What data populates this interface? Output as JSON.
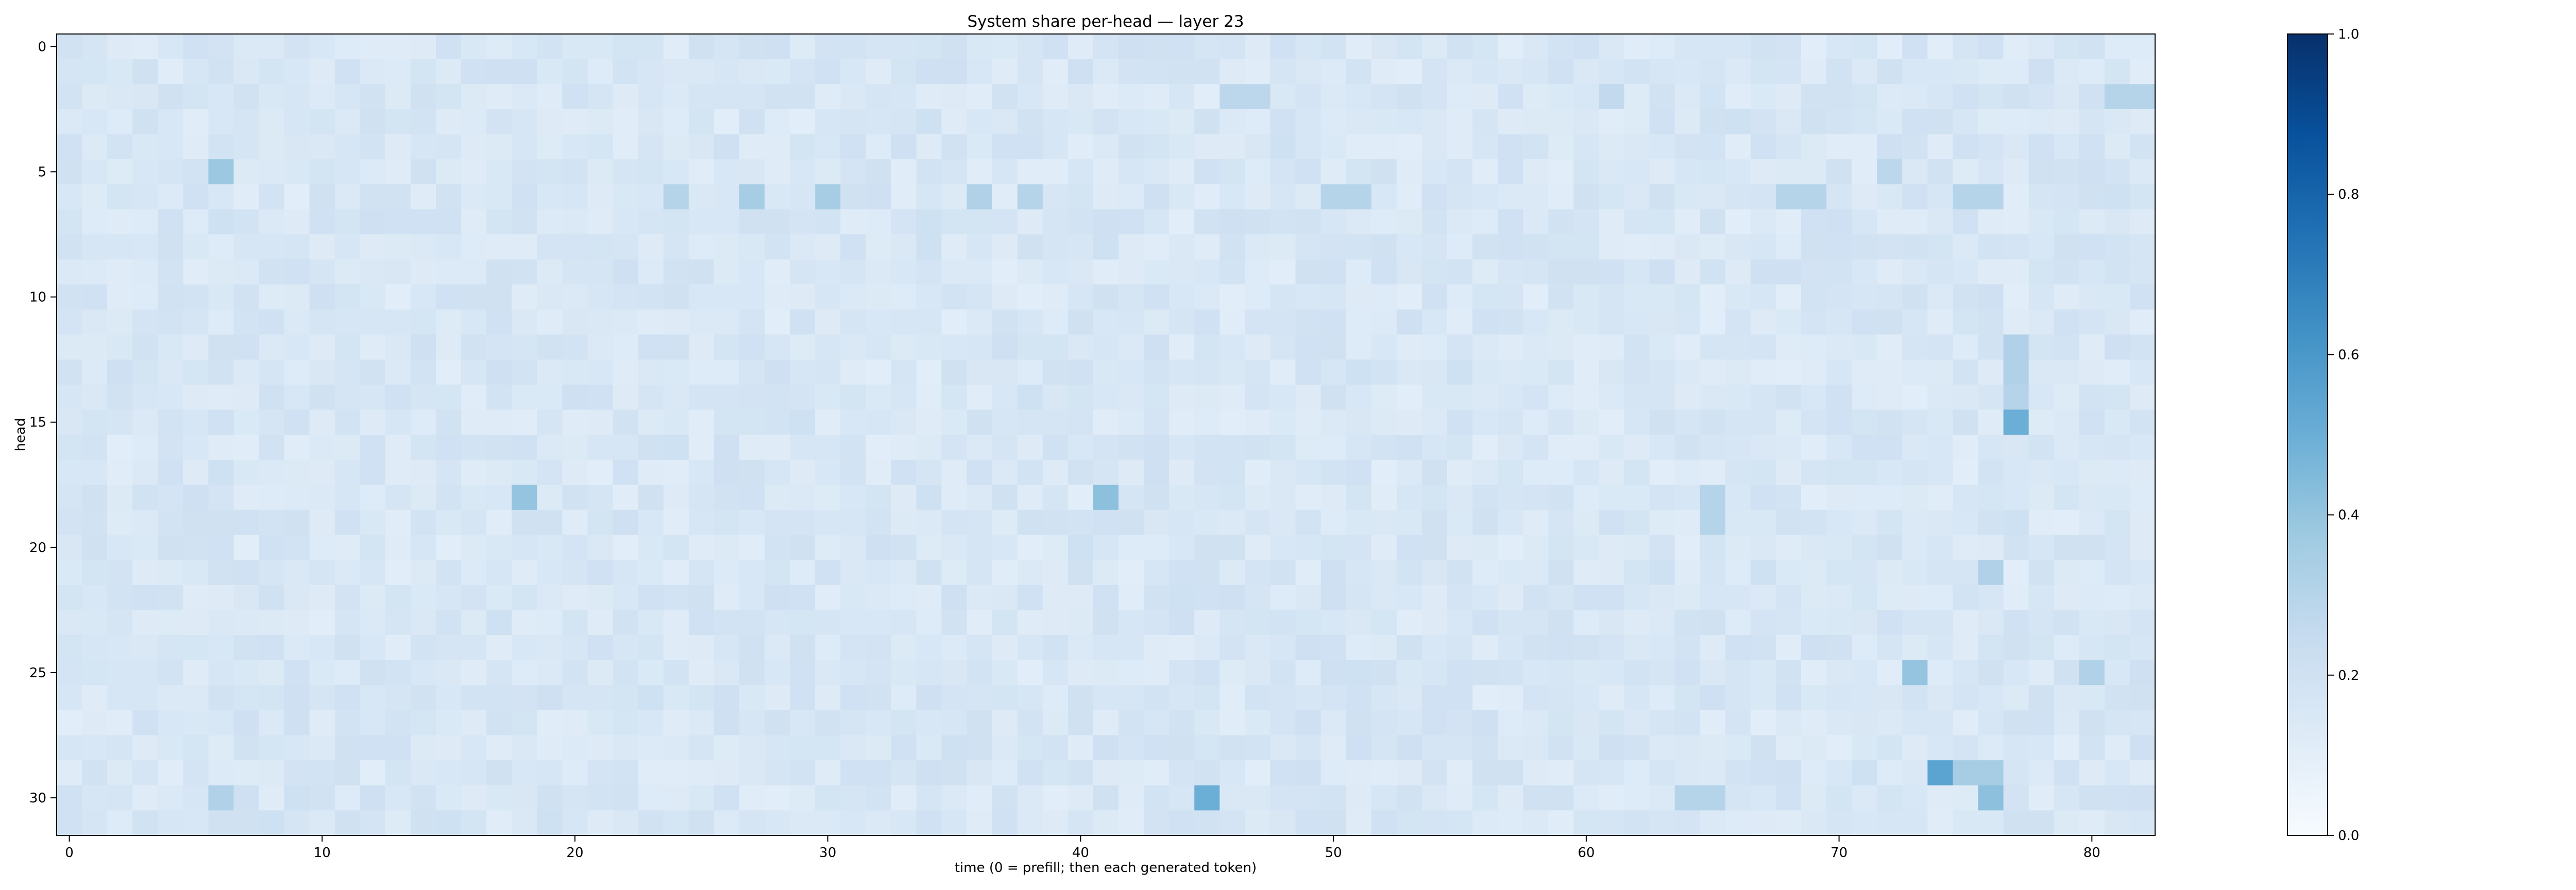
{
  "chart_data": {
    "type": "heatmap",
    "title": "System share per-head — layer 23",
    "xlabel": "time (0 = prefill; then each generated token)",
    "ylabel": "head",
    "n_x": 83,
    "n_y": 32,
    "x_ticks": [
      0,
      10,
      20,
      30,
      40,
      50,
      60,
      70,
      80
    ],
    "y_ticks": [
      0,
      5,
      10,
      15,
      20,
      25,
      30
    ],
    "colorbar": {
      "min": 0.0,
      "max": 1.0,
      "ticks": [
        0.0,
        0.2,
        0.4,
        0.6,
        0.8,
        1.0
      ],
      "colormap": "Blues"
    },
    "base_value": 0.16,
    "notable_cells": [
      {
        "t": 6,
        "h": 5,
        "v": 0.38
      },
      {
        "t": 24,
        "h": 6,
        "v": 0.3
      },
      {
        "t": 27,
        "h": 6,
        "v": 0.35
      },
      {
        "t": 30,
        "h": 6,
        "v": 0.35
      },
      {
        "t": 36,
        "h": 6,
        "v": 0.32
      },
      {
        "t": 38,
        "h": 6,
        "v": 0.3
      },
      {
        "t": 50,
        "h": 6,
        "v": 0.3
      },
      {
        "t": 51,
        "h": 6,
        "v": 0.3
      },
      {
        "t": 68,
        "h": 6,
        "v": 0.3
      },
      {
        "t": 69,
        "h": 6,
        "v": 0.3
      },
      {
        "t": 75,
        "h": 6,
        "v": 0.3
      },
      {
        "t": 76,
        "h": 6,
        "v": 0.3
      },
      {
        "t": 72,
        "h": 5,
        "v": 0.28
      },
      {
        "t": 46,
        "h": 2,
        "v": 0.28
      },
      {
        "t": 47,
        "h": 2,
        "v": 0.28
      },
      {
        "t": 81,
        "h": 2,
        "v": 0.3
      },
      {
        "t": 82,
        "h": 2,
        "v": 0.3
      },
      {
        "t": 61,
        "h": 2,
        "v": 0.26
      },
      {
        "t": 77,
        "h": 12,
        "v": 0.32
      },
      {
        "t": 77,
        "h": 13,
        "v": 0.32
      },
      {
        "t": 77,
        "h": 14,
        "v": 0.3
      },
      {
        "t": 77,
        "h": 15,
        "v": 0.5
      },
      {
        "t": 18,
        "h": 18,
        "v": 0.4
      },
      {
        "t": 41,
        "h": 18,
        "v": 0.42
      },
      {
        "t": 65,
        "h": 18,
        "v": 0.3
      },
      {
        "t": 65,
        "h": 19,
        "v": 0.3
      },
      {
        "t": 76,
        "h": 21,
        "v": 0.32
      },
      {
        "t": 73,
        "h": 25,
        "v": 0.4
      },
      {
        "t": 80,
        "h": 25,
        "v": 0.32
      },
      {
        "t": 74,
        "h": 29,
        "v": 0.55
      },
      {
        "t": 75,
        "h": 29,
        "v": 0.35
      },
      {
        "t": 76,
        "h": 29,
        "v": 0.35
      },
      {
        "t": 76,
        "h": 30,
        "v": 0.42
      },
      {
        "t": 45,
        "h": 30,
        "v": 0.5
      },
      {
        "t": 6,
        "h": 30,
        "v": 0.32
      },
      {
        "t": 64,
        "h": 30,
        "v": 0.3
      },
      {
        "t": 65,
        "h": 30,
        "v": 0.3
      }
    ]
  }
}
